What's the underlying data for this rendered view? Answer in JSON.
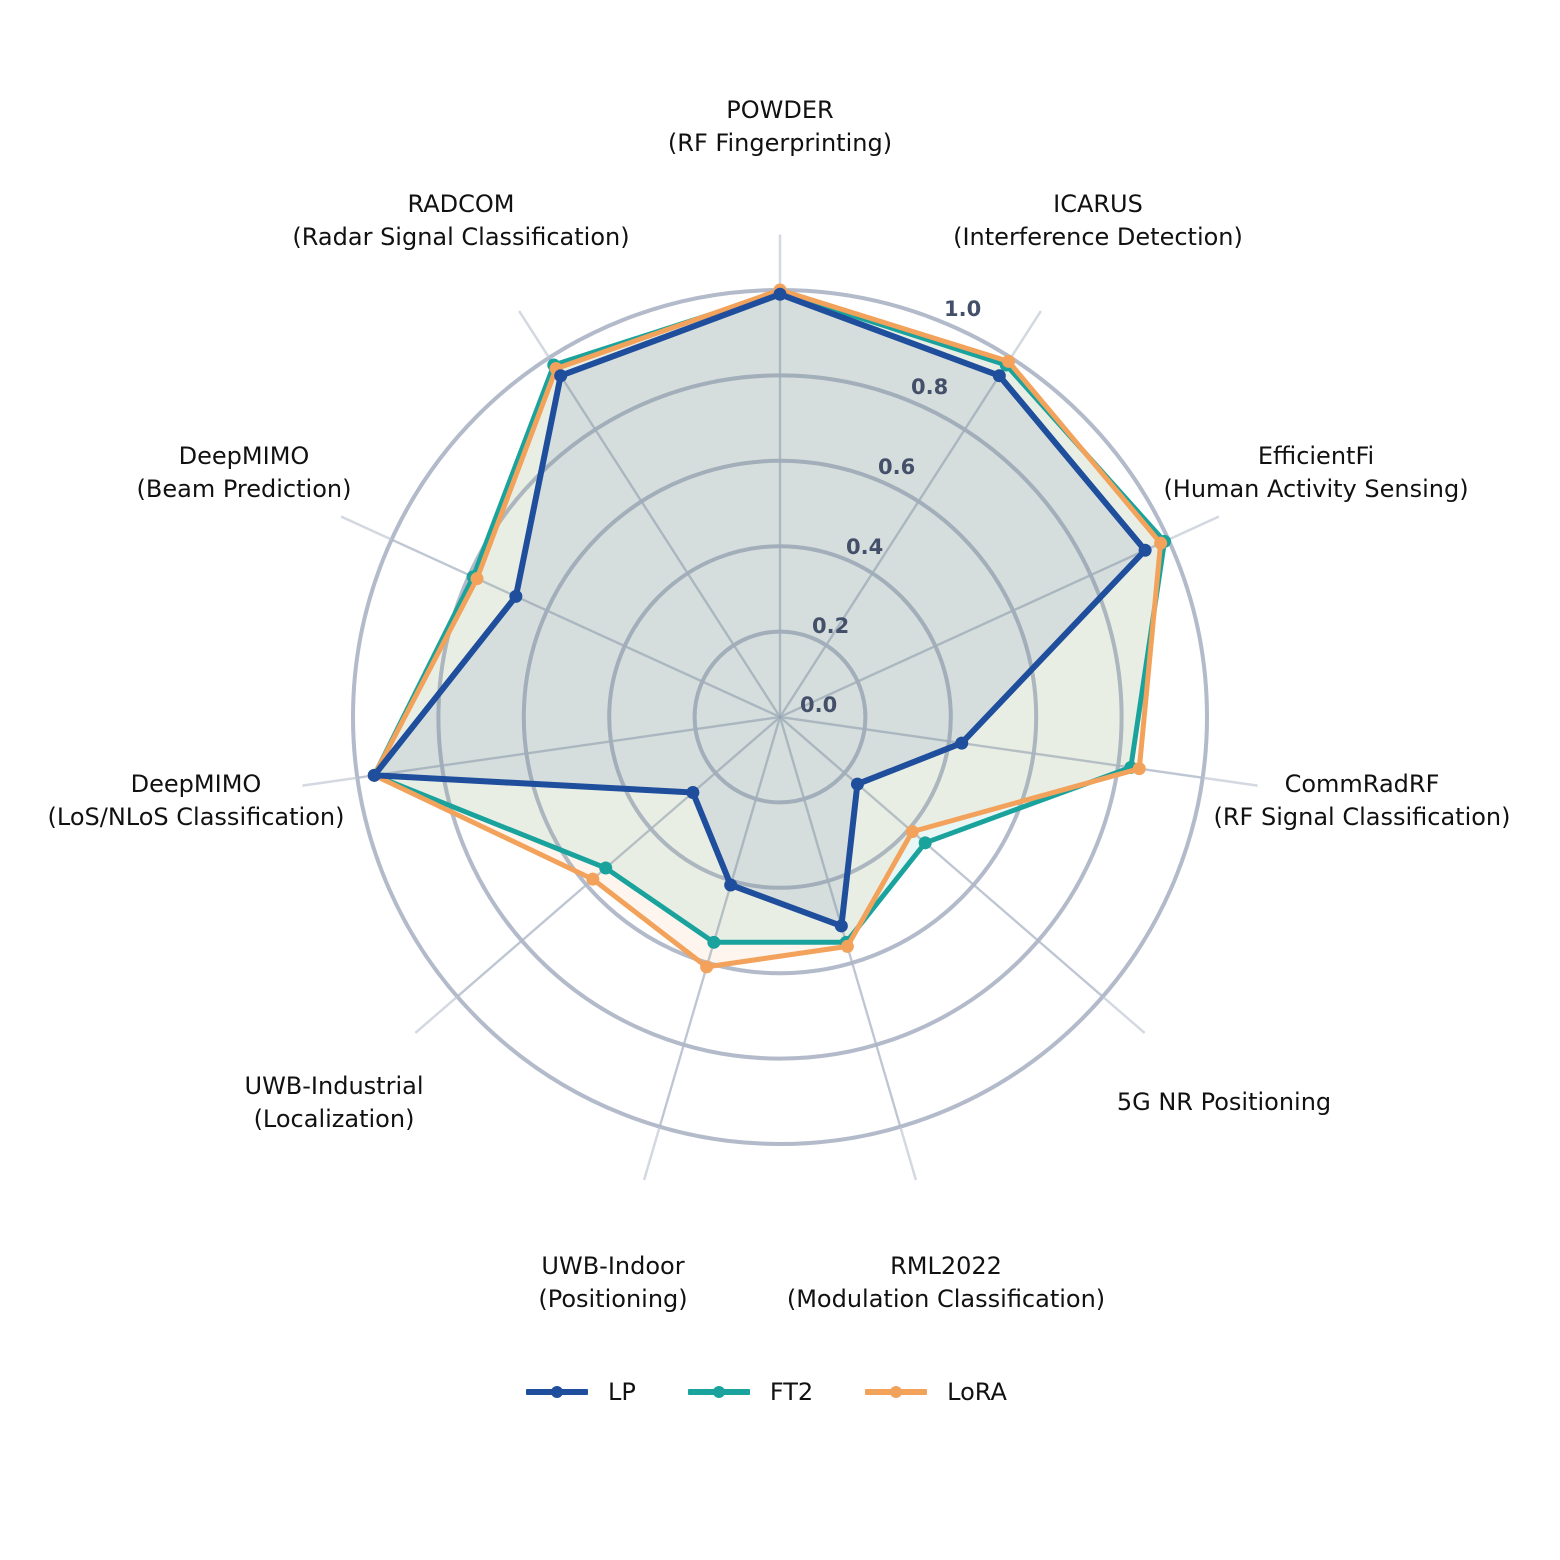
{
  "chart_data": {
    "type": "radar",
    "title": "",
    "categories": [
      "POWDER\n(RF Fingerprinting)",
      "ICARUS\n(Interference Detection)",
      "EfficientFi\n(Human Activity Sensing)",
      "CommRadRF\n(RF Signal Classification)",
      "5G NR Positioning",
      "RML2022\n(Modulation Classification)",
      "UWB-Indoor\n(Positioning)",
      "UWB-Industrial\n(Localization)",
      "DeepMIMO\n(LoS/NLoS Classification)",
      "DeepMIMO\n(Beam Prediction)",
      "RADCOM\n(Radar Signal Classification)"
    ],
    "series": [
      {
        "name": "LP",
        "color": "#1f4e9c",
        "values": [
          0.99,
          0.95,
          0.94,
          0.43,
          0.24,
          0.51,
          0.41,
          0.27,
          0.96,
          0.68,
          0.95
        ]
      },
      {
        "name": "FT2",
        "color": "#1aa39d",
        "values": [
          0.995,
          0.98,
          0.99,
          0.83,
          0.45,
          0.55,
          0.55,
          0.54,
          0.96,
          0.79,
          0.98
        ]
      },
      {
        "name": "LoRA",
        "color": "#f2a25a",
        "values": [
          1.0,
          0.99,
          0.98,
          0.85,
          0.41,
          0.56,
          0.61,
          0.58,
          0.96,
          0.78,
          0.97
        ]
      }
    ],
    "radial_ticks": [
      "0.0",
      "0.2",
      "0.4",
      "0.6",
      "0.8",
      "1.0"
    ],
    "rlim": [
      0,
      1.0
    ],
    "grid": true,
    "legend_position": "bottom-center"
  },
  "legend": {
    "items": [
      {
        "label": "LP",
        "color": "#1f4e9c"
      },
      {
        "label": "FT2",
        "color": "#1aa39d"
      },
      {
        "label": "LoRA",
        "color": "#f2a25a"
      }
    ]
  },
  "colors": {
    "grid_ring": "#c7cdd9",
    "spoke": "#d3d8e1",
    "tick_label": "#44506a"
  }
}
